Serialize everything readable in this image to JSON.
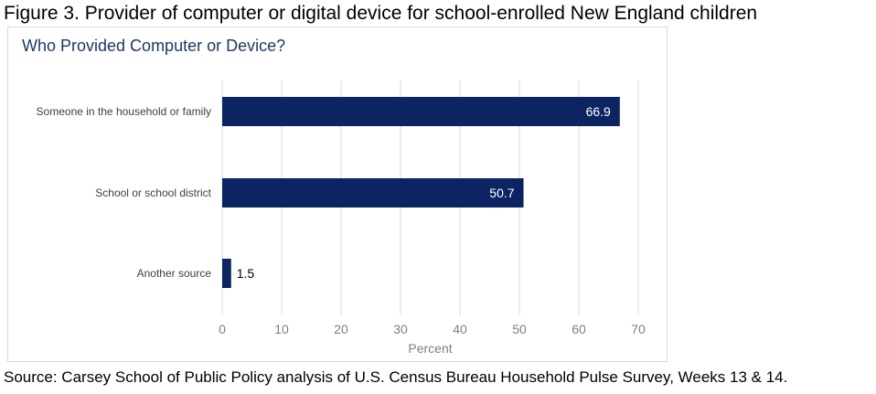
{
  "caption": "Figure 3. Provider of computer or digital device for school-enrolled New England children",
  "source": "Source: Carsey School of Public Policy analysis of U.S. Census Bureau Household Pulse Survey, Weeks 13 & 14.",
  "colors": {
    "bar": "#0c2461",
    "title": "#1f3864",
    "grid": "#d9d9d9",
    "axis_text": "#7f7f7f"
  },
  "chart_data": {
    "type": "bar",
    "orientation": "horizontal",
    "title": "Who Provided Computer or Device?",
    "xlabel": "Percent",
    "ylabel": "",
    "categories": [
      "Someone in the household or family",
      "School or school district",
      "Another source"
    ],
    "values": [
      66.9,
      50.7,
      1.5
    ],
    "value_labels": [
      "66.9",
      "50.7",
      "1.5"
    ],
    "xlim": [
      0,
      70
    ],
    "xticks": [
      "0",
      "10",
      "20",
      "30",
      "40",
      "50",
      "60",
      "70"
    ],
    "grid": "vertical",
    "legend": "none"
  }
}
